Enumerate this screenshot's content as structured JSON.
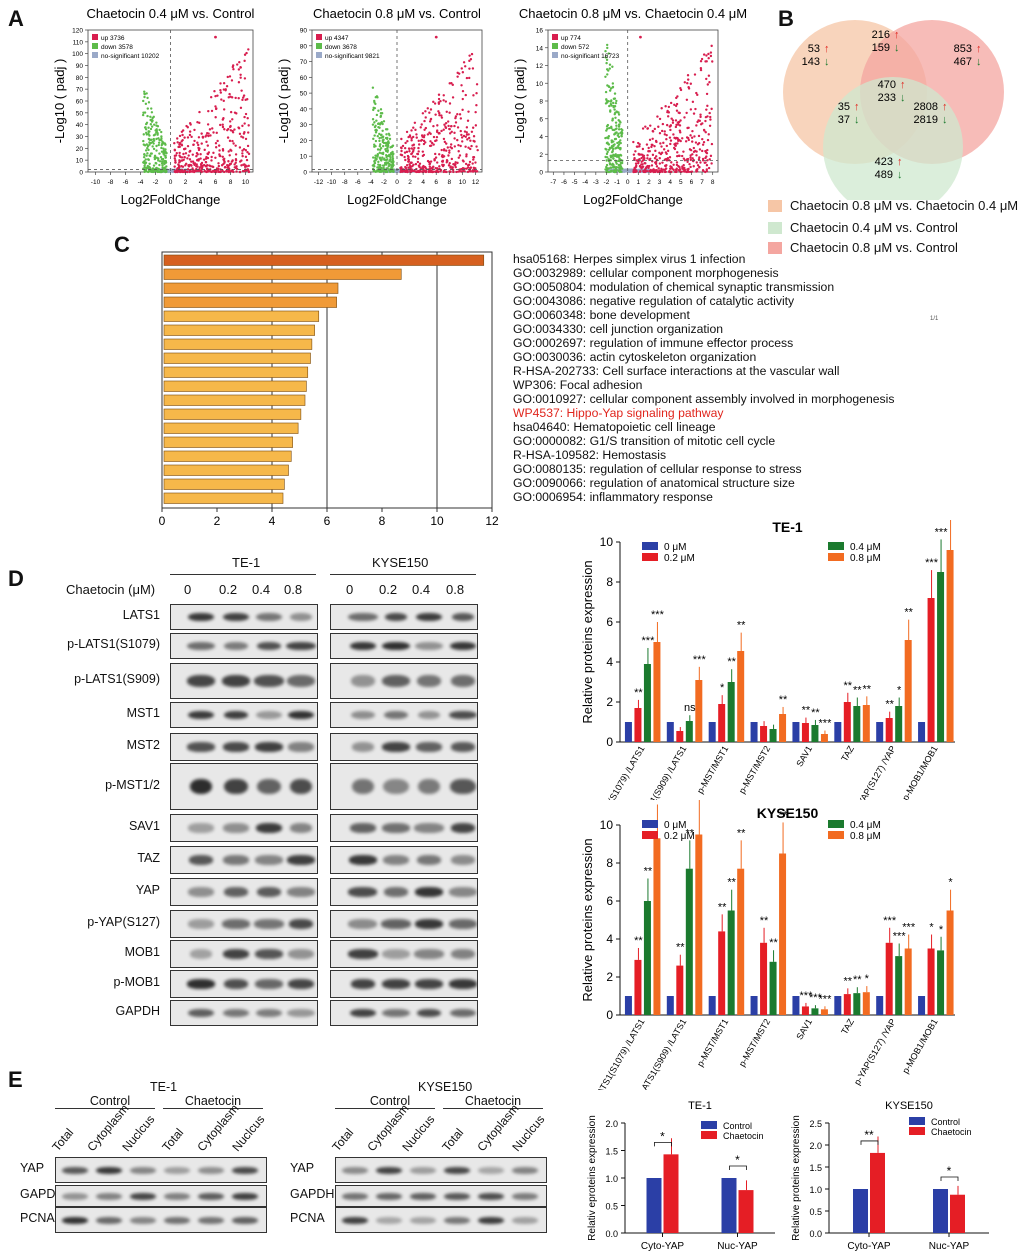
{
  "panels": {
    "A": "A",
    "B": "B",
    "C": "C",
    "D": "D",
    "E": "E"
  },
  "volcano": [
    {
      "title": "Chaetocin 0.4 μM vs. Control",
      "up": "up 3736",
      "down": "down 3578",
      "ns": "no-significant 10202",
      "xticks": [
        "-10",
        "-8",
        "-6",
        "-4",
        "-2",
        "0",
        "2",
        "4",
        "6",
        "8",
        "10"
      ],
      "yticks": [
        "0",
        "10",
        "20",
        "30",
        "40",
        "50",
        "60",
        "70",
        "80",
        "90",
        "100",
        "110",
        "120"
      ]
    },
    {
      "title": "Chaetocin 0.8 μM vs. Control",
      "up": "up 4347",
      "down": "down 3678",
      "ns": "no-significant 9821",
      "xticks": [
        "-12",
        "-10",
        "-8",
        "-6",
        "-4",
        "-2",
        "0",
        "2",
        "4",
        "6",
        "8",
        "10",
        "12"
      ],
      "yticks": [
        "0",
        "10",
        "20",
        "30",
        "40",
        "50",
        "60",
        "70",
        "80",
        "90"
      ]
    },
    {
      "title": "Chaetocin 0.8 μM vs. Chaetocin 0.4 μM",
      "up": "up 774",
      "down": "down 572",
      "ns": "no-significant 16723",
      "xticks": [
        "-7",
        "-6",
        "-5",
        "-4",
        "-3",
        "-2",
        "-1",
        "0",
        "1",
        "2",
        "3",
        "4",
        "5",
        "6",
        "7",
        "8"
      ],
      "yticks": [
        "0",
        "2",
        "4",
        "6",
        "8",
        "10",
        "12",
        "14",
        "16"
      ]
    }
  ],
  "volcano_axes": {
    "ylabel": "-Log10 ( padj )",
    "xlabel": "Log2FoldChange"
  },
  "venn": {
    "counts": [
      {
        "up": "53",
        "down": "143"
      },
      {
        "up": "216",
        "down": "159"
      },
      {
        "up": "853",
        "down": "467"
      },
      {
        "up": "470",
        "down": "233"
      },
      {
        "up": "35",
        "down": "37"
      },
      {
        "up": "2808",
        "down": "2819"
      },
      {
        "up": "423",
        "down": "489"
      }
    ],
    "legend": [
      "Chaetocin 0.8 μM vs. Chaetocin 0.4 μM",
      "Chaetocin 0.4 μM vs. Control",
      "Chaetocin 0.8 μM vs. Control"
    ],
    "colors": [
      "#f6c6a6",
      "#cfe8cf",
      "#f4a6a0"
    ]
  },
  "enrichment": {
    "terms": [
      "hsa05168: Herpes simplex virus 1 infection",
      "GO:0032989: cellular component morphogenesis",
      "GO:0050804: modulation of chemical synaptic transmission",
      "GO:0043086: negative regulation of catalytic activity",
      "GO:0060348: bone development",
      "GO:0034330: cell junction organization",
      "GO:0002697: regulation of immune effector process",
      "GO:0030036: actin cytoskeleton organization",
      "R-HSA-202733: Cell surface interactions at the vascular wall",
      "WP306: Focal adhesion",
      "GO:0010927: cellular component assembly involved in morphogenesis",
      "WP4537: Hippo-Yap signaling pathway",
      "hsa04640: Hematopoietic cell lineage",
      "GO:0000082: G1/S transition of mitotic cell cycle",
      "R-HSA-109582: Hemostasis",
      "GO:0080135: regulation of cellular response to stress",
      "GO:0090066: regulation of anatomical structure size",
      "GO:0006954: inflammatory response"
    ],
    "values": [
      11.7,
      8.7,
      6.4,
      6.35,
      5.7,
      5.55,
      5.45,
      5.4,
      5.3,
      5.25,
      5.2,
      5.05,
      4.95,
      4.75,
      4.7,
      4.6,
      4.45,
      4.4
    ],
    "xticks": [
      "0",
      "2",
      "4",
      "6",
      "8",
      "10",
      "12"
    ],
    "highlight_index": 11,
    "highlight_color": "#e0261e",
    "tiny_mark": "1/1"
  },
  "blotD": {
    "cell1": "TE-1",
    "cell2": "KYSE150",
    "treat": "Chaetocin (μM)",
    "doses": [
      "0",
      "0.2",
      "0.4",
      "0.8"
    ],
    "rows": [
      "LATS1",
      "p-LATS1(S1079)",
      "p-LATS1(S909)",
      "MST1",
      "MST2",
      "p-MST1/2",
      "SAV1",
      "TAZ",
      "YAP",
      "p-YAP(S127)",
      "MOB1",
      "p-MOB1",
      "GAPDH"
    ]
  },
  "barsD": {
    "ylabel": "Relative proteins expression",
    "legend": [
      "0 μM",
      "0.2 μM",
      "0.4 μM",
      "0.8 μM"
    ],
    "colors": [
      "#2b3fa6",
      "#e51e25",
      "#1b7a2e",
      "#f26b21"
    ],
    "categories": [
      "p-LATS1(S1079) /LATS1",
      "p-LATS1(S909) /LATS1",
      "p-MST/MST1",
      "p-MST/MST2",
      "SAV1",
      "TAZ",
      "p-YAP(S127) /YAP",
      "p-MOB1/MOB1"
    ],
    "charts": [
      {
        "title": "TE-1",
        "yticks": [
          "0",
          "2",
          "4",
          "6",
          "8",
          "10"
        ],
        "ymax": 10,
        "values": [
          [
            1,
            1.7,
            3.9,
            5.0
          ],
          [
            1,
            0.55,
            1.05,
            3.1
          ],
          [
            1,
            1.9,
            3.0,
            4.55
          ],
          [
            1,
            0.8,
            0.65,
            1.4
          ],
          [
            1,
            0.95,
            0.85,
            0.4
          ],
          [
            1,
            2.0,
            1.8,
            1.85
          ],
          [
            1,
            1.2,
            1.8,
            5.1
          ],
          [
            1,
            7.2,
            8.5,
            9.6
          ]
        ],
        "sig": [
          [
            "**",
            "***",
            "***"
          ],
          [
            "",
            "ns",
            "***"
          ],
          [
            "*",
            "**",
            "**"
          ],
          [
            "",
            "",
            "**"
          ],
          [
            "**",
            "**",
            "***"
          ],
          [
            "**",
            "**",
            "**"
          ],
          [
            "**",
            "*",
            "**"
          ],
          [
            "***",
            "***",
            "***"
          ]
        ]
      },
      {
        "title": "KYSE150",
        "yticks": [
          "0",
          "2",
          "4",
          "6",
          "8",
          "10"
        ],
        "ymax": 10,
        "values": [
          [
            1,
            2.9,
            6.0,
            9.3
          ],
          [
            1,
            2.6,
            7.7,
            9.5
          ],
          [
            1,
            4.4,
            5.5,
            7.7
          ],
          [
            1,
            3.8,
            2.8,
            8.5
          ],
          [
            1,
            0.45,
            0.35,
            0.3
          ],
          [
            1,
            1.1,
            1.15,
            1.2
          ],
          [
            1,
            3.8,
            3.1,
            3.5
          ],
          [
            1,
            3.5,
            3.4,
            5.5
          ]
        ],
        "sig": [
          [
            "**",
            "**",
            "***"
          ],
          [
            "**",
            "**",
            "**"
          ],
          [
            "**",
            "**",
            "**"
          ],
          [
            "**",
            "**",
            "**"
          ],
          [
            "***",
            "***",
            "***"
          ],
          [
            "**",
            "**",
            "*"
          ],
          [
            "***",
            "***",
            "***"
          ],
          [
            "*",
            "*",
            "*"
          ]
        ]
      }
    ]
  },
  "blotE": {
    "cells": [
      "TE-1",
      "KYSE150"
    ],
    "groups": [
      "Control",
      "Chaetocin"
    ],
    "fractions": [
      "Total",
      "Cytoplasm",
      "Nuclcus",
      "Total",
      "Cytoplasm",
      "Nuclcus"
    ],
    "rows": [
      "YAP",
      "GAPDH",
      "PCNA"
    ]
  },
  "barsE": {
    "legend": [
      "Control",
      "Chaetocin"
    ],
    "colors": [
      "#2b3fa6",
      "#e51e25"
    ],
    "categories": [
      "Cyto-YAP",
      "Nuc-YAP"
    ],
    "charts": [
      {
        "title": "TE-1",
        "ylabel": "Relativ eproteins expression",
        "yticks": [
          "0.0",
          "0.5",
          "1.0",
          "1.5",
          "2.0"
        ],
        "ymax": 2.0,
        "values": [
          [
            1.0,
            1.43
          ],
          [
            1.0,
            0.78
          ]
        ],
        "sig": [
          "*",
          "*"
        ]
      },
      {
        "title": "KYSE150",
        "ylabel": "Relative proteins expression",
        "yticks": [
          "0.0",
          "0.5",
          "1.0",
          "1.5",
          "2.0",
          "2.5"
        ],
        "ymax": 2.5,
        "values": [
          [
            1.0,
            1.82
          ],
          [
            1.0,
            0.87
          ]
        ],
        "sig": [
          "**",
          "*"
        ]
      }
    ]
  }
}
